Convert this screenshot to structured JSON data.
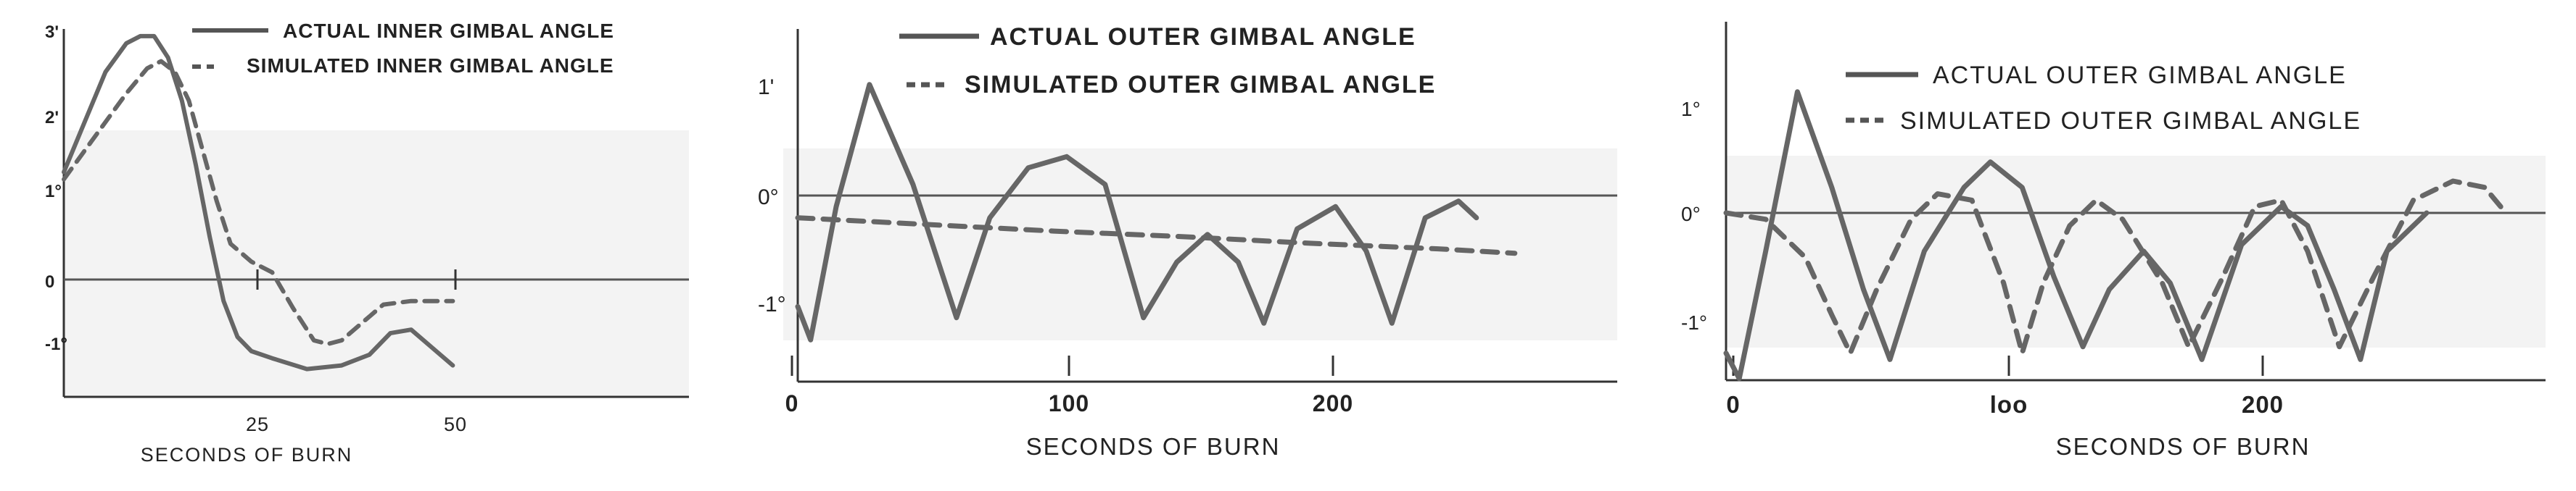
{
  "chart_data": [
    {
      "type": "line",
      "title": "",
      "xlabel": "SECONDS OF BURN",
      "ylabel": "",
      "xlim": [
        0,
        90
      ],
      "ylim": [
        -1.6,
        3.5
      ],
      "x_ticks": [
        "25",
        "50"
      ],
      "y_ticks": [
        "3'",
        "2'",
        "1°",
        "0",
        "-1°"
      ],
      "grid": false,
      "legend": "top-right",
      "series": [
        {
          "name": "ACTUAL INNER GIMBAL ANGLE",
          "style": "solid",
          "x": [
            0,
            3,
            6,
            9,
            11,
            13,
            15,
            17,
            19,
            21,
            23,
            25,
            27,
            30,
            35,
            40,
            44,
            47,
            50,
            53,
            56
          ],
          "y": [
            1.5,
            2.2,
            2.9,
            3.3,
            3.4,
            3.4,
            3.1,
            2.5,
            1.6,
            0.6,
            -0.3,
            -0.8,
            -1.0,
            -1.1,
            -1.25,
            -1.2,
            -1.05,
            -0.75,
            -0.7,
            -0.95,
            -1.2
          ]
        },
        {
          "name": "SIMULATED INNER GIMBAL ANGLE",
          "style": "dashed",
          "x": [
            0,
            3,
            6,
            9,
            12,
            14,
            16,
            18,
            20,
            22,
            24,
            27,
            30,
            33,
            36,
            38,
            40,
            43,
            46,
            50,
            53,
            56
          ],
          "y": [
            1.4,
            1.8,
            2.2,
            2.6,
            2.95,
            3.05,
            2.9,
            2.5,
            1.8,
            1.1,
            0.5,
            0.25,
            0.1,
            -0.4,
            -0.85,
            -0.9,
            -0.85,
            -0.6,
            -0.35,
            -0.3,
            -0.3,
            -0.3
          ]
        }
      ]
    },
    {
      "type": "line",
      "title": "",
      "xlabel": "SECONDS OF BURN",
      "ylabel": "",
      "xlim": [
        0,
        320
      ],
      "ylim": [
        -1.6,
        1.5
      ],
      "x_ticks": [
        "0",
        "100",
        "200"
      ],
      "y_ticks": [
        "1'",
        "0°",
        "-1°"
      ],
      "grid": false,
      "legend": "top-right",
      "series": [
        {
          "name": "ACTUAL OUTER GIMBAL ANGLE",
          "style": "solid",
          "x": [
            0,
            5,
            15,
            28,
            45,
            62,
            75,
            90,
            105,
            120,
            135,
            148,
            160,
            172,
            182,
            195,
            210,
            222,
            232,
            245,
            258,
            265
          ],
          "y": [
            -1.0,
            -1.3,
            -0.1,
            1.0,
            0.1,
            -1.1,
            -0.2,
            0.25,
            0.35,
            0.1,
            -1.1,
            -0.6,
            -0.35,
            -0.6,
            -1.15,
            -0.3,
            -0.1,
            -0.5,
            -1.15,
            -0.2,
            -0.05,
            -0.2
          ]
        },
        {
          "name": "SIMULATED OUTER GIMBAL ANGLE",
          "style": "dashed",
          "x": [
            0,
            50,
            100,
            150,
            200,
            250,
            280
          ],
          "y": [
            -0.2,
            -0.26,
            -0.32,
            -0.37,
            -0.43,
            -0.48,
            -0.52
          ]
        }
      ]
    },
    {
      "type": "line",
      "title": "",
      "xlabel": "SECONDS OF BURN",
      "ylabel": "",
      "xlim": [
        0,
        310
      ],
      "ylim": [
        -1.7,
        1.5
      ],
      "x_ticks": [
        "0",
        "loo",
        "200"
      ],
      "y_ticks": [
        "1°",
        "0°",
        "-1°"
      ],
      "grid": false,
      "legend": "top-right",
      "series": [
        {
          "name": "ACTUAL OUTER GIMBAL ANGLE",
          "style": "solid",
          "x": [
            0,
            5,
            15,
            27,
            40,
            52,
            62,
            75,
            90,
            100,
            112,
            124,
            135,
            145,
            158,
            168,
            180,
            195,
            210,
            220,
            230,
            240,
            250,
            265
          ],
          "y": [
            -1.1,
            -1.3,
            -0.3,
            0.95,
            0.2,
            -0.6,
            -1.15,
            -0.3,
            0.2,
            0.4,
            0.2,
            -0.5,
            -1.05,
            -0.6,
            -0.3,
            -0.55,
            -1.15,
            -0.25,
            0.05,
            -0.1,
            -0.6,
            -1.15,
            -0.3,
            0.0
          ]
        },
        {
          "name": "SIMULATED OUTER GIMBAL ANGLE",
          "style": "dashed",
          "x": [
            0,
            15,
            30,
            40,
            47,
            57,
            70,
            80,
            93,
            105,
            112,
            120,
            130,
            140,
            150,
            165,
            175,
            188,
            200,
            210,
            220,
            232,
            245,
            260,
            275,
            287,
            295
          ],
          "y": [
            0.0,
            -0.05,
            -0.35,
            -0.8,
            -1.1,
            -0.6,
            -0.05,
            0.15,
            0.1,
            -0.55,
            -1.1,
            -0.55,
            -0.1,
            0.1,
            -0.05,
            -0.55,
            -1.05,
            -0.5,
            0.05,
            0.1,
            -0.3,
            -1.05,
            -0.5,
            0.1,
            0.25,
            0.2,
            0.0
          ]
        }
      ]
    }
  ]
}
